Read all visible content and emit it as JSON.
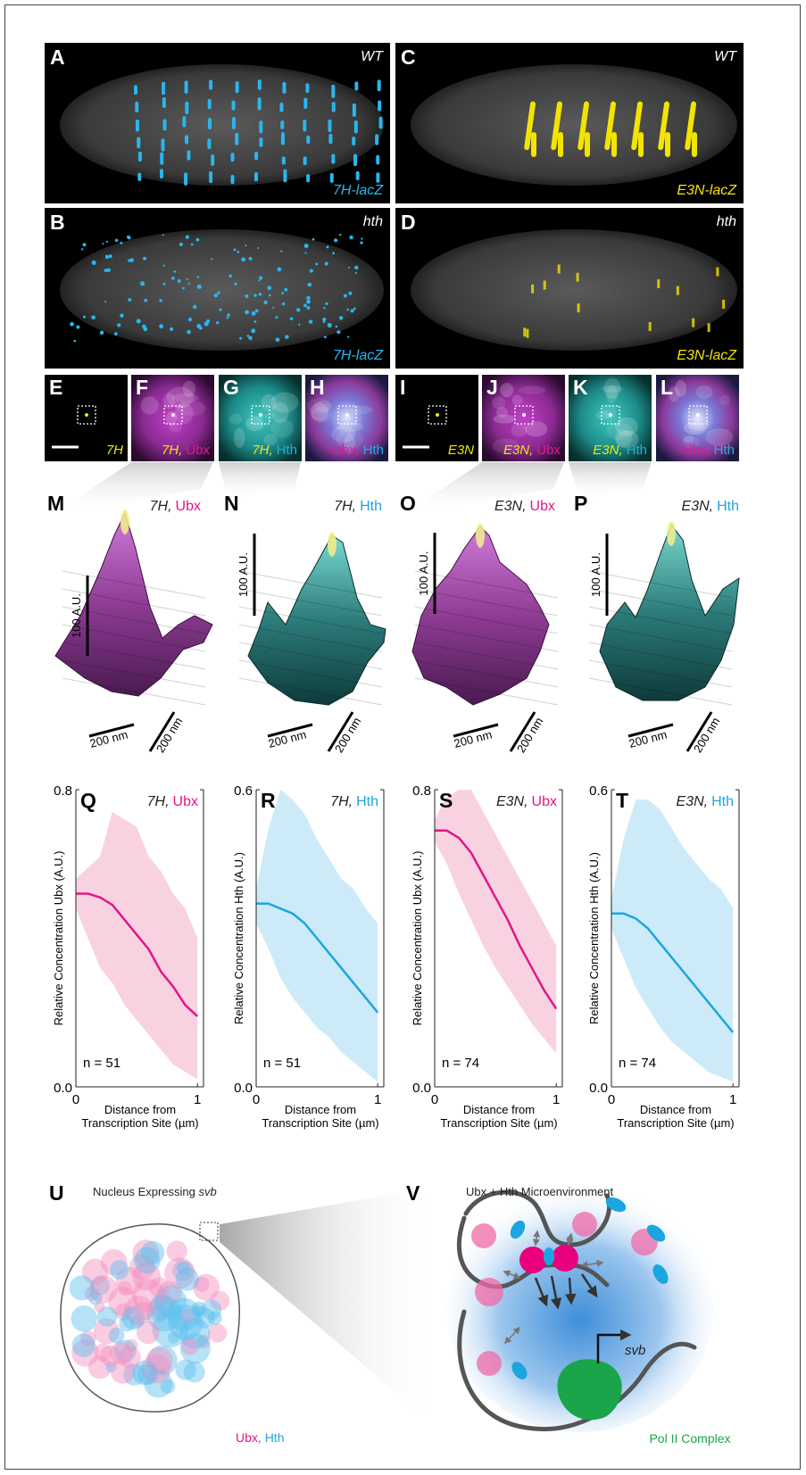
{
  "panels_top": [
    {
      "letter": "A",
      "top": "WT",
      "bottom": "7H-lacZ"
    },
    {
      "letter": "C",
      "top": "WT",
      "bottom": "E3N-lacZ"
    },
    {
      "letter": "B",
      "top": "hth",
      "bottom": "7H-lacZ"
    },
    {
      "letter": "D",
      "top": "hth",
      "bottom": "E3N-lacZ"
    }
  ],
  "panels_small": [
    {
      "letter": "E",
      "label": [
        "7H"
      ]
    },
    {
      "letter": "F",
      "label": [
        "7H,",
        "Ubx"
      ]
    },
    {
      "letter": "G",
      "label": [
        "7H,",
        "Hth"
      ]
    },
    {
      "letter": "H",
      "label": [
        "Ubx,",
        "Hth"
      ]
    },
    {
      "letter": "I",
      "label": [
        "E3N"
      ]
    },
    {
      "letter": "J",
      "label": [
        "E3N,",
        "Ubx"
      ]
    },
    {
      "letter": "K",
      "label": [
        "E3N,",
        "Hth"
      ]
    },
    {
      "letter": "L",
      "label": [
        "Ubx,",
        "Hth"
      ]
    }
  ],
  "panels_3d": [
    {
      "letter": "M",
      "title": [
        "7H,",
        "Ubx"
      ],
      "z_scale": "100 A.U.",
      "xy_scale": "200 nm"
    },
    {
      "letter": "N",
      "title": [
        "7H,",
        "Hth"
      ],
      "z_scale": "100 A.U.",
      "xy_scale": "200 nm"
    },
    {
      "letter": "O",
      "title": [
        "E3N,",
        "Ubx"
      ],
      "z_scale": "100 A.U.",
      "xy_scale": "200 nm"
    },
    {
      "letter": "P",
      "title": [
        "E3N,",
        "Hth"
      ],
      "z_scale": "100 A.U.",
      "xy_scale": "200 nm"
    }
  ],
  "chart_data": [
    {
      "type": "line",
      "letter": "Q",
      "title": [
        "7H,",
        "Ubx"
      ],
      "ylabel": "Relative Concentration Ubx (A.U.)",
      "xlabel": [
        "Distance from",
        "Transcription Site (µm)"
      ],
      "x": [
        0,
        0.1,
        0.2,
        0.3,
        0.4,
        0.5,
        0.6,
        0.7,
        0.8,
        0.9,
        1.0
      ],
      "values": [
        0.52,
        0.52,
        0.51,
        0.49,
        0.45,
        0.41,
        0.37,
        0.31,
        0.27,
        0.22,
        0.19
      ],
      "upper": [
        0.56,
        0.59,
        0.62,
        0.74,
        0.72,
        0.7,
        0.62,
        0.58,
        0.52,
        0.48,
        0.4
      ],
      "lower": [
        0.48,
        0.4,
        0.32,
        0.28,
        0.22,
        0.18,
        0.14,
        0.1,
        0.06,
        0.04,
        0.02
      ],
      "color": "#e2168a",
      "band_color": "#f9d2e2",
      "xlim": [
        0,
        1.05
      ],
      "ylim": [
        0,
        0.8
      ],
      "xticks": [
        0,
        1
      ],
      "yticks": [
        {
          "value": 0,
          "label": "0.0"
        },
        0.8
      ],
      "annotation": "n = 51"
    },
    {
      "type": "line",
      "letter": "R",
      "title": [
        "7H,",
        "Hth"
      ],
      "ylabel": "Relative Concentration Hth (A.U.)",
      "xlabel": [
        "Distance from",
        "Transcription Site (µm)"
      ],
      "x": [
        0,
        0.1,
        0.2,
        0.3,
        0.4,
        0.5,
        0.6,
        0.7,
        0.8,
        0.9,
        1.0
      ],
      "values": [
        0.37,
        0.37,
        0.36,
        0.35,
        0.33,
        0.3,
        0.27,
        0.24,
        0.21,
        0.18,
        0.15
      ],
      "upper": [
        0.4,
        0.52,
        0.6,
        0.58,
        0.55,
        0.5,
        0.46,
        0.42,
        0.4,
        0.36,
        0.33
      ],
      "lower": [
        0.33,
        0.28,
        0.22,
        0.18,
        0.15,
        0.12,
        0.1,
        0.07,
        0.05,
        0.03,
        0.01
      ],
      "color": "#1ba6df",
      "band_color": "#cdeaf8",
      "xlim": [
        0,
        1.05
      ],
      "ylim": [
        0,
        0.6
      ],
      "xticks": [
        0,
        1
      ],
      "yticks": [
        {
          "value": 0,
          "label": "0.0"
        },
        0.6
      ],
      "annotation": "n = 51"
    },
    {
      "type": "line",
      "letter": "S",
      "title": [
        "E3N,",
        "Ubx"
      ],
      "ylabel": "Relative Concentration Ubx (A.U.)",
      "xlabel": [
        "Distance from",
        "Transcription Site (µm)"
      ],
      "x": [
        0,
        0.1,
        0.2,
        0.3,
        0.4,
        0.5,
        0.6,
        0.7,
        0.8,
        0.9,
        1.0
      ],
      "values": [
        0.69,
        0.69,
        0.67,
        0.63,
        0.57,
        0.51,
        0.45,
        0.38,
        0.32,
        0.26,
        0.21
      ],
      "upper": [
        0.72,
        0.78,
        0.8,
        0.8,
        0.74,
        0.68,
        0.62,
        0.56,
        0.5,
        0.44,
        0.38
      ],
      "lower": [
        0.66,
        0.6,
        0.52,
        0.45,
        0.38,
        0.32,
        0.27,
        0.22,
        0.17,
        0.13,
        0.09
      ],
      "color": "#e2168a",
      "band_color": "#f9d2e2",
      "xlim": [
        0,
        1.05
      ],
      "ylim": [
        0,
        0.8
      ],
      "xticks": [
        0,
        1
      ],
      "yticks": [
        {
          "value": 0,
          "label": "0.0"
        },
        0.8
      ],
      "annotation": "n = 74"
    },
    {
      "type": "line",
      "letter": "T",
      "title": [
        "E3N,",
        "Hth"
      ],
      "ylabel": "Relative Concentration Hth (A.U.)",
      "xlabel": [
        "Distance from",
        "Transcription Site (µm)"
      ],
      "x": [
        0,
        0.1,
        0.2,
        0.3,
        0.4,
        0.5,
        0.6,
        0.7,
        0.8,
        0.9,
        1.0
      ],
      "values": [
        0.35,
        0.35,
        0.34,
        0.32,
        0.29,
        0.26,
        0.23,
        0.2,
        0.17,
        0.14,
        0.11
      ],
      "upper": [
        0.38,
        0.5,
        0.58,
        0.58,
        0.56,
        0.52,
        0.48,
        0.45,
        0.42,
        0.4,
        0.36
      ],
      "lower": [
        0.32,
        0.26,
        0.2,
        0.16,
        0.12,
        0.09,
        0.07,
        0.05,
        0.03,
        0.02,
        0.01
      ],
      "color": "#1ba6df",
      "band_color": "#cdeaf8",
      "xlim": [
        0,
        1.05
      ],
      "ylim": [
        0,
        0.6
      ],
      "xticks": [
        0,
        1
      ],
      "yticks": [
        {
          "value": 0,
          "label": "0.0"
        },
        0.6
      ],
      "annotation": "n = 74"
    }
  ],
  "diagram_u": {
    "letter": "U",
    "title": "Nucleus Expressing",
    "gene": "svb",
    "legend": [
      "Ubx,",
      "Hth"
    ]
  },
  "diagram_v": {
    "letter": "V",
    "title": "Ubx + Hth Microenvironment",
    "gene": "svb",
    "complex": "Pol II Complex"
  }
}
